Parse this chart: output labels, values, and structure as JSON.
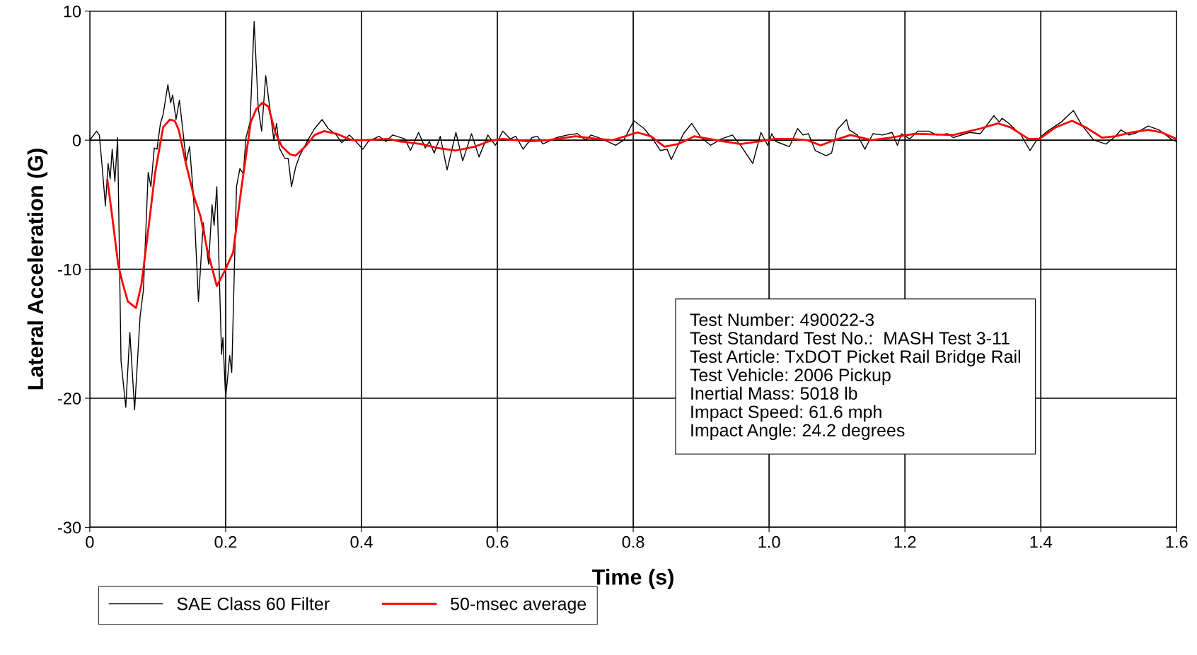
{
  "chart_data": {
    "type": "line",
    "xlabel": "Time (s)",
    "ylabel": "Lateral Acceleration (G)",
    "xlim": [
      0,
      1.6
    ],
    "ylim": [
      -30,
      10
    ],
    "xticks": [
      0,
      0.2,
      0.4,
      0.6,
      0.8,
      {
        "value": 1.0,
        "label": "1.0"
      },
      1.2,
      1.4,
      1.6
    ],
    "yticks": [
      -30,
      -20,
      -10,
      0,
      10
    ],
    "grid": true,
    "legend": "bottom",
    "marker": "none",
    "line_style": "solid",
    "annotations": [
      "Test Number: 490022-3\nTest Standard Test No.:  MASH Test 3-11\nTest Article: TxDOT Picket Rail Bridge Rail\nTest Vehicle: 2006 Pickup\nInertial Mass: 5018 lb\nImpact Speed: 61.6 mph\nImpact Angle: 24.2 degrees"
    ],
    "series": [
      {
        "name": "SAE Class 60 Filter",
        "color": "#000000",
        "x": [
          0,
          0.01,
          0.014,
          0.018,
          0.023,
          0.027,
          0.03,
          0.033,
          0.037,
          0.041,
          0.046,
          0.053,
          0.059,
          0.066,
          0.074,
          0.079,
          0.086,
          0.09,
          0.095,
          0.099,
          0.104,
          0.108,
          0.115,
          0.119,
          0.122,
          0.127,
          0.132,
          0.142,
          0.147,
          0.153,
          0.16,
          0.167,
          0.175,
          0.18,
          0.183,
          0.187,
          0.194,
          0.196,
          0.2,
          0.206,
          0.209,
          0.216,
          0.221,
          0.226,
          0.23,
          0.236,
          0.242,
          0.248,
          0.253,
          0.259,
          0.265,
          0.271,
          0.275,
          0.279,
          0.287,
          0.292,
          0.297,
          0.303,
          0.309,
          0.322,
          0.331,
          0.342,
          0.351,
          0.363,
          0.371,
          0.382,
          0.39,
          0.402,
          0.41,
          0.426,
          0.436,
          0.446,
          0.464,
          0.472,
          0.484,
          0.494,
          0.5,
          0.507,
          0.516,
          0.526,
          0.539,
          0.549,
          0.562,
          0.573,
          0.586,
          0.597,
          0.608,
          0.619,
          0.627,
          0.638,
          0.651,
          0.659,
          0.667,
          0.687,
          0.703,
          0.718,
          0.73,
          0.738,
          0.754,
          0.774,
          0.786,
          0.801,
          0.816,
          0.83,
          0.84,
          0.85,
          0.856,
          0.874,
          0.886,
          0.9,
          0.914,
          0.93,
          0.946,
          0.958,
          0.976,
          0.988,
          0.998,
          1.004,
          1.01,
          1.03,
          1.042,
          1.05,
          1.058,
          1.068,
          1.084,
          1.092,
          1.1,
          1.114,
          1.118,
          1.13,
          1.141,
          1.153,
          1.167,
          1.181,
          1.189,
          1.195,
          1.207,
          1.219,
          1.235,
          1.247,
          1.263,
          1.271,
          1.295,
          1.311,
          1.331,
          1.339,
          1.343,
          1.353,
          1.371,
          1.384,
          1.394,
          1.41,
          1.43,
          1.448,
          1.46,
          1.478,
          1.496,
          1.51,
          1.518,
          1.53,
          1.542,
          1.558,
          1.574,
          1.594,
          1.6
        ],
        "values": [
          0,
          0.7,
          0.4,
          -1.9,
          -5.1,
          -1.8,
          -3.0,
          -0.7,
          -3.2,
          0.2,
          -17.1,
          -20.7,
          -14.9,
          -20.9,
          -13.7,
          -11.6,
          -2.5,
          -3.6,
          -0.6,
          -0.7,
          1.3,
          2.0,
          4.3,
          2.9,
          3.5,
          1.6,
          3.1,
          -1.6,
          -0.5,
          -4.6,
          -12.5,
          -6.4,
          -9.6,
          -5.0,
          -6.6,
          -3.6,
          -16.6,
          -15.3,
          -20.0,
          -16.7,
          -18.0,
          -3.6,
          -2.2,
          -2.6,
          0.2,
          1.4,
          9.2,
          2.5,
          0.7,
          5.0,
          2.5,
          0,
          1.3,
          -0.6,
          -1.4,
          -1.4,
          -3.6,
          -2.1,
          -1.2,
          0.1,
          0.9,
          1.6,
          0.9,
          0.4,
          -0.2,
          0.4,
          0,
          -0.7,
          -0.1,
          0.3,
          -0.1,
          0.4,
          0.1,
          -0.8,
          0.6,
          -0.6,
          -0.1,
          -1.0,
          0.3,
          -2.3,
          0.6,
          -1.6,
          0.5,
          -1.3,
          0.4,
          -0.4,
          0.7,
          0.1,
          0.3,
          -0.7,
          0.2,
          0.3,
          -0.3,
          0.2,
          0.4,
          0.5,
          0,
          0.4,
          0.1,
          -0.4,
          0,
          1.5,
          0.9,
          0,
          -0.8,
          -0.7,
          -1.5,
          0.5,
          1.3,
          0.2,
          -0.4,
          0.1,
          0.4,
          -0.4,
          -1.8,
          0.6,
          -0.4,
          0.5,
          -0.1,
          -0.5,
          0.9,
          0.4,
          0.5,
          -0.8,
          -1.2,
          -1.0,
          0.8,
          1.6,
          0.8,
          0.4,
          -0.7,
          0.5,
          0.4,
          0.6,
          -0.4,
          0.5,
          0.1,
          0.7,
          0.7,
          0.4,
          0.5,
          0.2,
          0.6,
          0.5,
          1.9,
          1.4,
          1.7,
          1.3,
          0.4,
          -0.8,
          0,
          0.7,
          1.4,
          2.3,
          1.2,
          0,
          -0.3,
          0.3,
          0.8,
          0.4,
          0.6,
          1.1,
          0.8,
          0,
          -0.1
        ]
      },
      {
        "name": "50-msec average",
        "color": "#ff0000",
        "x": [
          0.026,
          0.032,
          0.042,
          0.048,
          0.056,
          0.068,
          0.076,
          0.086,
          0.096,
          0.108,
          0.118,
          0.125,
          0.131,
          0.141,
          0.153,
          0.163,
          0.173,
          0.187,
          0.199,
          0.211,
          0.223,
          0.237,
          0.245,
          0.254,
          0.263,
          0.273,
          0.283,
          0.295,
          0.303,
          0.317,
          0.331,
          0.345,
          0.363,
          0.386,
          0.406,
          0.44,
          0.456,
          0.488,
          0.511,
          0.539,
          0.567,
          0.587,
          0.607,
          0.647,
          0.675,
          0.715,
          0.747,
          0.77,
          0.806,
          0.826,
          0.846,
          0.866,
          0.89,
          0.922,
          0.958,
          0.986,
          1.008,
          1.032,
          1.056,
          1.076,
          1.096,
          1.12,
          1.151,
          1.179,
          1.215,
          1.271,
          1.311,
          1.337,
          1.355,
          1.382,
          1.398,
          1.422,
          1.446,
          1.466,
          1.49,
          1.51,
          1.534,
          1.558,
          1.578,
          1.6
        ],
        "values": [
          -3.1,
          -5.5,
          -9.7,
          -11.0,
          -12.5,
          -13.0,
          -11.2,
          -7.0,
          -2.6,
          1.0,
          1.6,
          1.5,
          0.8,
          -1.7,
          -4.3,
          -5.9,
          -8.5,
          -11.3,
          -10.1,
          -8.7,
          -3.8,
          1.4,
          2.4,
          2.9,
          2.6,
          0.6,
          -0.5,
          -1.1,
          -1.2,
          -0.5,
          0.4,
          0.7,
          0.5,
          0,
          0,
          0.1,
          -0.1,
          -0.3,
          -0.6,
          -0.8,
          -0.5,
          -0.1,
          0.1,
          -0.1,
          0,
          0.3,
          0.1,
          0,
          0.6,
          0.3,
          -0.5,
          -0.3,
          0.3,
          0,
          -0.3,
          -0.1,
          0.1,
          0.1,
          0,
          -0.4,
          0,
          0.4,
          0,
          0.2,
          0.5,
          0.4,
          0.9,
          1.3,
          1.0,
          0.1,
          0.1,
          1.0,
          1.5,
          1.0,
          0.2,
          0.3,
          0.6,
          0.8,
          0.6,
          0.1
        ]
      }
    ]
  }
}
